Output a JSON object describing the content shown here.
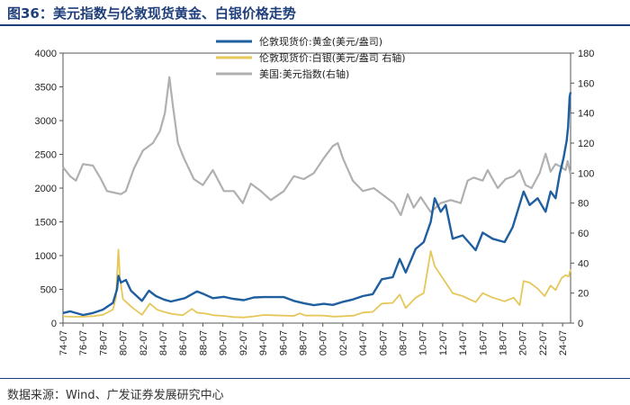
{
  "header": {
    "title": "图36：美元指数与伦敦现货黄金、白银价格走势"
  },
  "footer": {
    "source": "数据来源：Wind、广发证券发展研究中心"
  },
  "chart_data": {
    "type": "line",
    "x_tick_labels": [
      "74-07",
      "76-07",
      "78-07",
      "80-07",
      "82-07",
      "84-07",
      "86-07",
      "88-07",
      "90-07",
      "92-07",
      "94-07",
      "96-07",
      "98-07",
      "00-07",
      "02-07",
      "04-07",
      "06-07",
      "08-07",
      "10-07",
      "12-07",
      "14-07",
      "16-07",
      "18-07",
      "20-07",
      "22-07",
      "24-07"
    ],
    "x_range": [
      1974.5,
      2025.3
    ],
    "y_left": {
      "range": [
        0,
        4000
      ],
      "ticks": [
        0,
        500,
        1000,
        1500,
        2000,
        2500,
        3000,
        3500,
        4000
      ]
    },
    "y_right": {
      "range": [
        0,
        180
      ],
      "ticks": [
        0,
        20,
        40,
        60,
        80,
        100,
        120,
        140,
        160,
        180
      ]
    },
    "series": [
      {
        "name": "伦敦现货价:黄金(美元/盎司)",
        "axis": "left",
        "color": "#1f5fa0",
        "width": 2.4,
        "points": [
          [
            1974.5,
            150
          ],
          [
            1975.2,
            175
          ],
          [
            1976.5,
            120
          ],
          [
            1977.5,
            150
          ],
          [
            1978.5,
            200
          ],
          [
            1979.5,
            300
          ],
          [
            1979.9,
            500
          ],
          [
            1980.05,
            700
          ],
          [
            1980.3,
            600
          ],
          [
            1980.8,
            640
          ],
          [
            1981.3,
            480
          ],
          [
            1982.4,
            330
          ],
          [
            1983.1,
            480
          ],
          [
            1983.8,
            400
          ],
          [
            1984.6,
            350
          ],
          [
            1985.3,
            320
          ],
          [
            1986.7,
            370
          ],
          [
            1987.9,
            470
          ],
          [
            1988.6,
            430
          ],
          [
            1989.5,
            370
          ],
          [
            1990.6,
            390
          ],
          [
            1991.5,
            360
          ],
          [
            1992.6,
            340
          ],
          [
            1993.6,
            380
          ],
          [
            1994.6,
            385
          ],
          [
            1995.6,
            385
          ],
          [
            1996.6,
            385
          ],
          [
            1997.6,
            330
          ],
          [
            1998.6,
            295
          ],
          [
            1999.6,
            265
          ],
          [
            2000.6,
            285
          ],
          [
            2001.5,
            270
          ],
          [
            2002.5,
            315
          ],
          [
            2003.5,
            350
          ],
          [
            2004.5,
            400
          ],
          [
            2005.5,
            430
          ],
          [
            2006.4,
            650
          ],
          [
            2007.5,
            680
          ],
          [
            2008.2,
            950
          ],
          [
            2008.8,
            750
          ],
          [
            2009.8,
            1100
          ],
          [
            2010.6,
            1200
          ],
          [
            2011.3,
            1500
          ],
          [
            2011.7,
            1850
          ],
          [
            2012.3,
            1650
          ],
          [
            2012.8,
            1750
          ],
          [
            2013.5,
            1250
          ],
          [
            2014.5,
            1300
          ],
          [
            2015.8,
            1080
          ],
          [
            2016.5,
            1340
          ],
          [
            2017.5,
            1250
          ],
          [
            2018.7,
            1200
          ],
          [
            2019.5,
            1420
          ],
          [
            2020.6,
            1950
          ],
          [
            2021.2,
            1750
          ],
          [
            2022.0,
            1850
          ],
          [
            2022.8,
            1650
          ],
          [
            2023.3,
            1950
          ],
          [
            2023.8,
            1850
          ],
          [
            2024.2,
            2200
          ],
          [
            2024.6,
            2450
          ],
          [
            2024.9,
            2700
          ],
          [
            2025.05,
            2900
          ],
          [
            2025.2,
            3350
          ],
          [
            2025.3,
            3420
          ]
        ]
      },
      {
        "name": "伦敦现货价:白银(美元/盎司 右轴)",
        "axis": "right",
        "color": "#e5c75a",
        "width": 1.8,
        "points": [
          [
            1974.5,
            4.5
          ],
          [
            1975.5,
            4.2
          ],
          [
            1976.5,
            4.3
          ],
          [
            1977.5,
            4.6
          ],
          [
            1978.5,
            5.5
          ],
          [
            1979.5,
            9
          ],
          [
            1979.8,
            17
          ],
          [
            1980.05,
            49
          ],
          [
            1980.2,
            30
          ],
          [
            1980.5,
            16
          ],
          [
            1981.5,
            10
          ],
          [
            1982.4,
            5.5
          ],
          [
            1983.2,
            13
          ],
          [
            1983.9,
            9
          ],
          [
            1984.6,
            7.5
          ],
          [
            1985.5,
            6
          ],
          [
            1986.5,
            5.3
          ],
          [
            1987.4,
            9.5
          ],
          [
            1987.9,
            7
          ],
          [
            1988.8,
            6.3
          ],
          [
            1989.6,
            5.2
          ],
          [
            1990.6,
            4.8
          ],
          [
            1991.6,
            4
          ],
          [
            1992.6,
            3.8
          ],
          [
            1993.6,
            4.5
          ],
          [
            1994.6,
            5.4
          ],
          [
            1995.6,
            5.2
          ],
          [
            1996.6,
            5
          ],
          [
            1997.6,
            4.8
          ],
          [
            1998.2,
            6.5
          ],
          [
            1998.8,
            5
          ],
          [
            1999.6,
            5.1
          ],
          [
            2000.6,
            5
          ],
          [
            2001.6,
            4.3
          ],
          [
            2002.6,
            4.6
          ],
          [
            2003.6,
            5
          ],
          [
            2004.5,
            7
          ],
          [
            2005.5,
            7.5
          ],
          [
            2006.4,
            13
          ],
          [
            2007.5,
            13.5
          ],
          [
            2008.2,
            19
          ],
          [
            2008.8,
            10
          ],
          [
            2009.8,
            17
          ],
          [
            2010.6,
            20
          ],
          [
            2011.3,
            48
          ],
          [
            2011.7,
            38
          ],
          [
            2012.6,
            29
          ],
          [
            2013.5,
            20
          ],
          [
            2014.5,
            18
          ],
          [
            2015.8,
            14
          ],
          [
            2016.5,
            20
          ],
          [
            2017.5,
            17
          ],
          [
            2018.7,
            14.5
          ],
          [
            2019.6,
            17
          ],
          [
            2020.2,
            12
          ],
          [
            2020.6,
            28
          ],
          [
            2021.2,
            27
          ],
          [
            2022.0,
            23
          ],
          [
            2022.7,
            18
          ],
          [
            2023.3,
            25
          ],
          [
            2023.8,
            22
          ],
          [
            2024.4,
            30
          ],
          [
            2024.8,
            32
          ],
          [
            2025.1,
            31
          ],
          [
            2025.3,
            36
          ]
        ]
      },
      {
        "name": "美国:美元指数(右轴)",
        "axis": "right",
        "color": "#b0b0b0",
        "width": 2.2,
        "points": [
          [
            1974.5,
            104
          ],
          [
            1975.2,
            98
          ],
          [
            1975.8,
            95
          ],
          [
            1976.5,
            106
          ],
          [
            1977.5,
            105
          ],
          [
            1978.3,
            96
          ],
          [
            1978.9,
            88
          ],
          [
            1979.6,
            87
          ],
          [
            1980.3,
            86
          ],
          [
            1980.8,
            88
          ],
          [
            1981.6,
            103
          ],
          [
            1982.5,
            115
          ],
          [
            1983.5,
            120
          ],
          [
            1984.2,
            128
          ],
          [
            1984.7,
            140
          ],
          [
            1985.15,
            164
          ],
          [
            1985.5,
            145
          ],
          [
            1986.0,
            120
          ],
          [
            1986.6,
            110
          ],
          [
            1987.6,
            96
          ],
          [
            1988.5,
            92
          ],
          [
            1989.5,
            102
          ],
          [
            1990.6,
            88
          ],
          [
            1991.6,
            88
          ],
          [
            1992.5,
            80
          ],
          [
            1993.3,
            93
          ],
          [
            1994.3,
            88
          ],
          [
            1995.3,
            82
          ],
          [
            1996.6,
            88
          ],
          [
            1997.6,
            98
          ],
          [
            1998.6,
            96
          ],
          [
            1999.6,
            100
          ],
          [
            2000.6,
            110
          ],
          [
            2001.5,
            118
          ],
          [
            2002.0,
            120
          ],
          [
            2002.5,
            110
          ],
          [
            2003.5,
            95
          ],
          [
            2004.5,
            88
          ],
          [
            2005.6,
            90
          ],
          [
            2006.6,
            85
          ],
          [
            2007.6,
            80
          ],
          [
            2008.3,
            72
          ],
          [
            2009.0,
            86
          ],
          [
            2009.6,
            77
          ],
          [
            2010.3,
            84
          ],
          [
            2011.3,
            74
          ],
          [
            2012.3,
            80
          ],
          [
            2013.3,
            82
          ],
          [
            2014.3,
            80
          ],
          [
            2015.0,
            95
          ],
          [
            2015.6,
            97
          ],
          [
            2016.5,
            95
          ],
          [
            2017.0,
            102
          ],
          [
            2018.0,
            90
          ],
          [
            2018.8,
            96
          ],
          [
            2019.6,
            98
          ],
          [
            2020.2,
            102
          ],
          [
            2020.8,
            92
          ],
          [
            2021.4,
            90
          ],
          [
            2022.2,
            100
          ],
          [
            2022.8,
            113
          ],
          [
            2023.3,
            101
          ],
          [
            2023.8,
            106
          ],
          [
            2024.4,
            104
          ],
          [
            2024.8,
            102
          ],
          [
            2025.0,
            108
          ],
          [
            2025.3,
            99
          ]
        ]
      }
    ]
  }
}
